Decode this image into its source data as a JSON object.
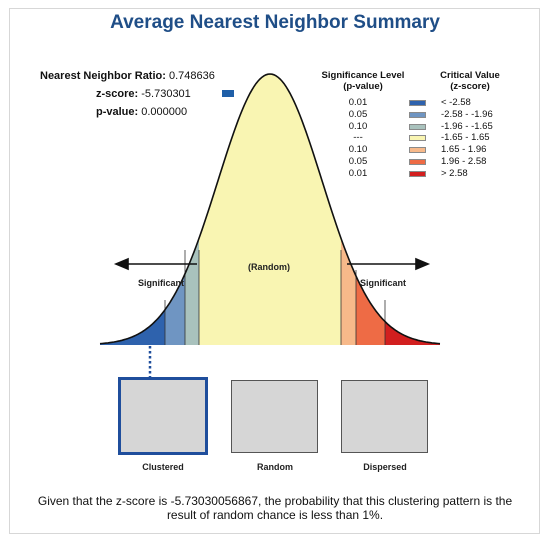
{
  "title": "Average Nearest Neighbor Summary",
  "stats": {
    "ratio_label": "Nearest Neighbor Ratio:",
    "ratio_value": "0.748636",
    "z_label": "z-score:",
    "z_value": "-5.730301",
    "p_label": "p-value:",
    "p_value": "0.000000"
  },
  "legend": {
    "col1_header_line1": "Significance Level",
    "col1_header_line2": "(p-value)",
    "col2_header_line1": "Critical Value",
    "col2_header_line2": "(z-score)",
    "rows": [
      {
        "p": "0.01",
        "z": "< -2.58",
        "color": "#2e62ad"
      },
      {
        "p": "0.05",
        "z": "-2.58 - -1.96",
        "color": "#6f95c2"
      },
      {
        "p": "0.10",
        "z": "-1.96 - -1.65",
        "color": "#a9c2bd"
      },
      {
        "p": "---",
        "z": "-1.65 - 1.65",
        "color": "#f9f5b2"
      },
      {
        "p": "0.10",
        "z": "1.65 - 1.96",
        "color": "#f7b98a"
      },
      {
        "p": "0.05",
        "z": "1.96 - 2.58",
        "color": "#ee6b45"
      },
      {
        "p": "0.01",
        "z": "> 2.58",
        "color": "#d21f1f"
      }
    ]
  },
  "curve_labels": {
    "left": "Significant",
    "center": "(Random)",
    "right": "Significant"
  },
  "patterns": {
    "clustered": "Clustered",
    "random": "Random",
    "dispersed": "Dispersed"
  },
  "caption": "Given that the z-score is -5.73030056867, the probability that this clustering pattern is the result of random chance is less than 1%."
}
